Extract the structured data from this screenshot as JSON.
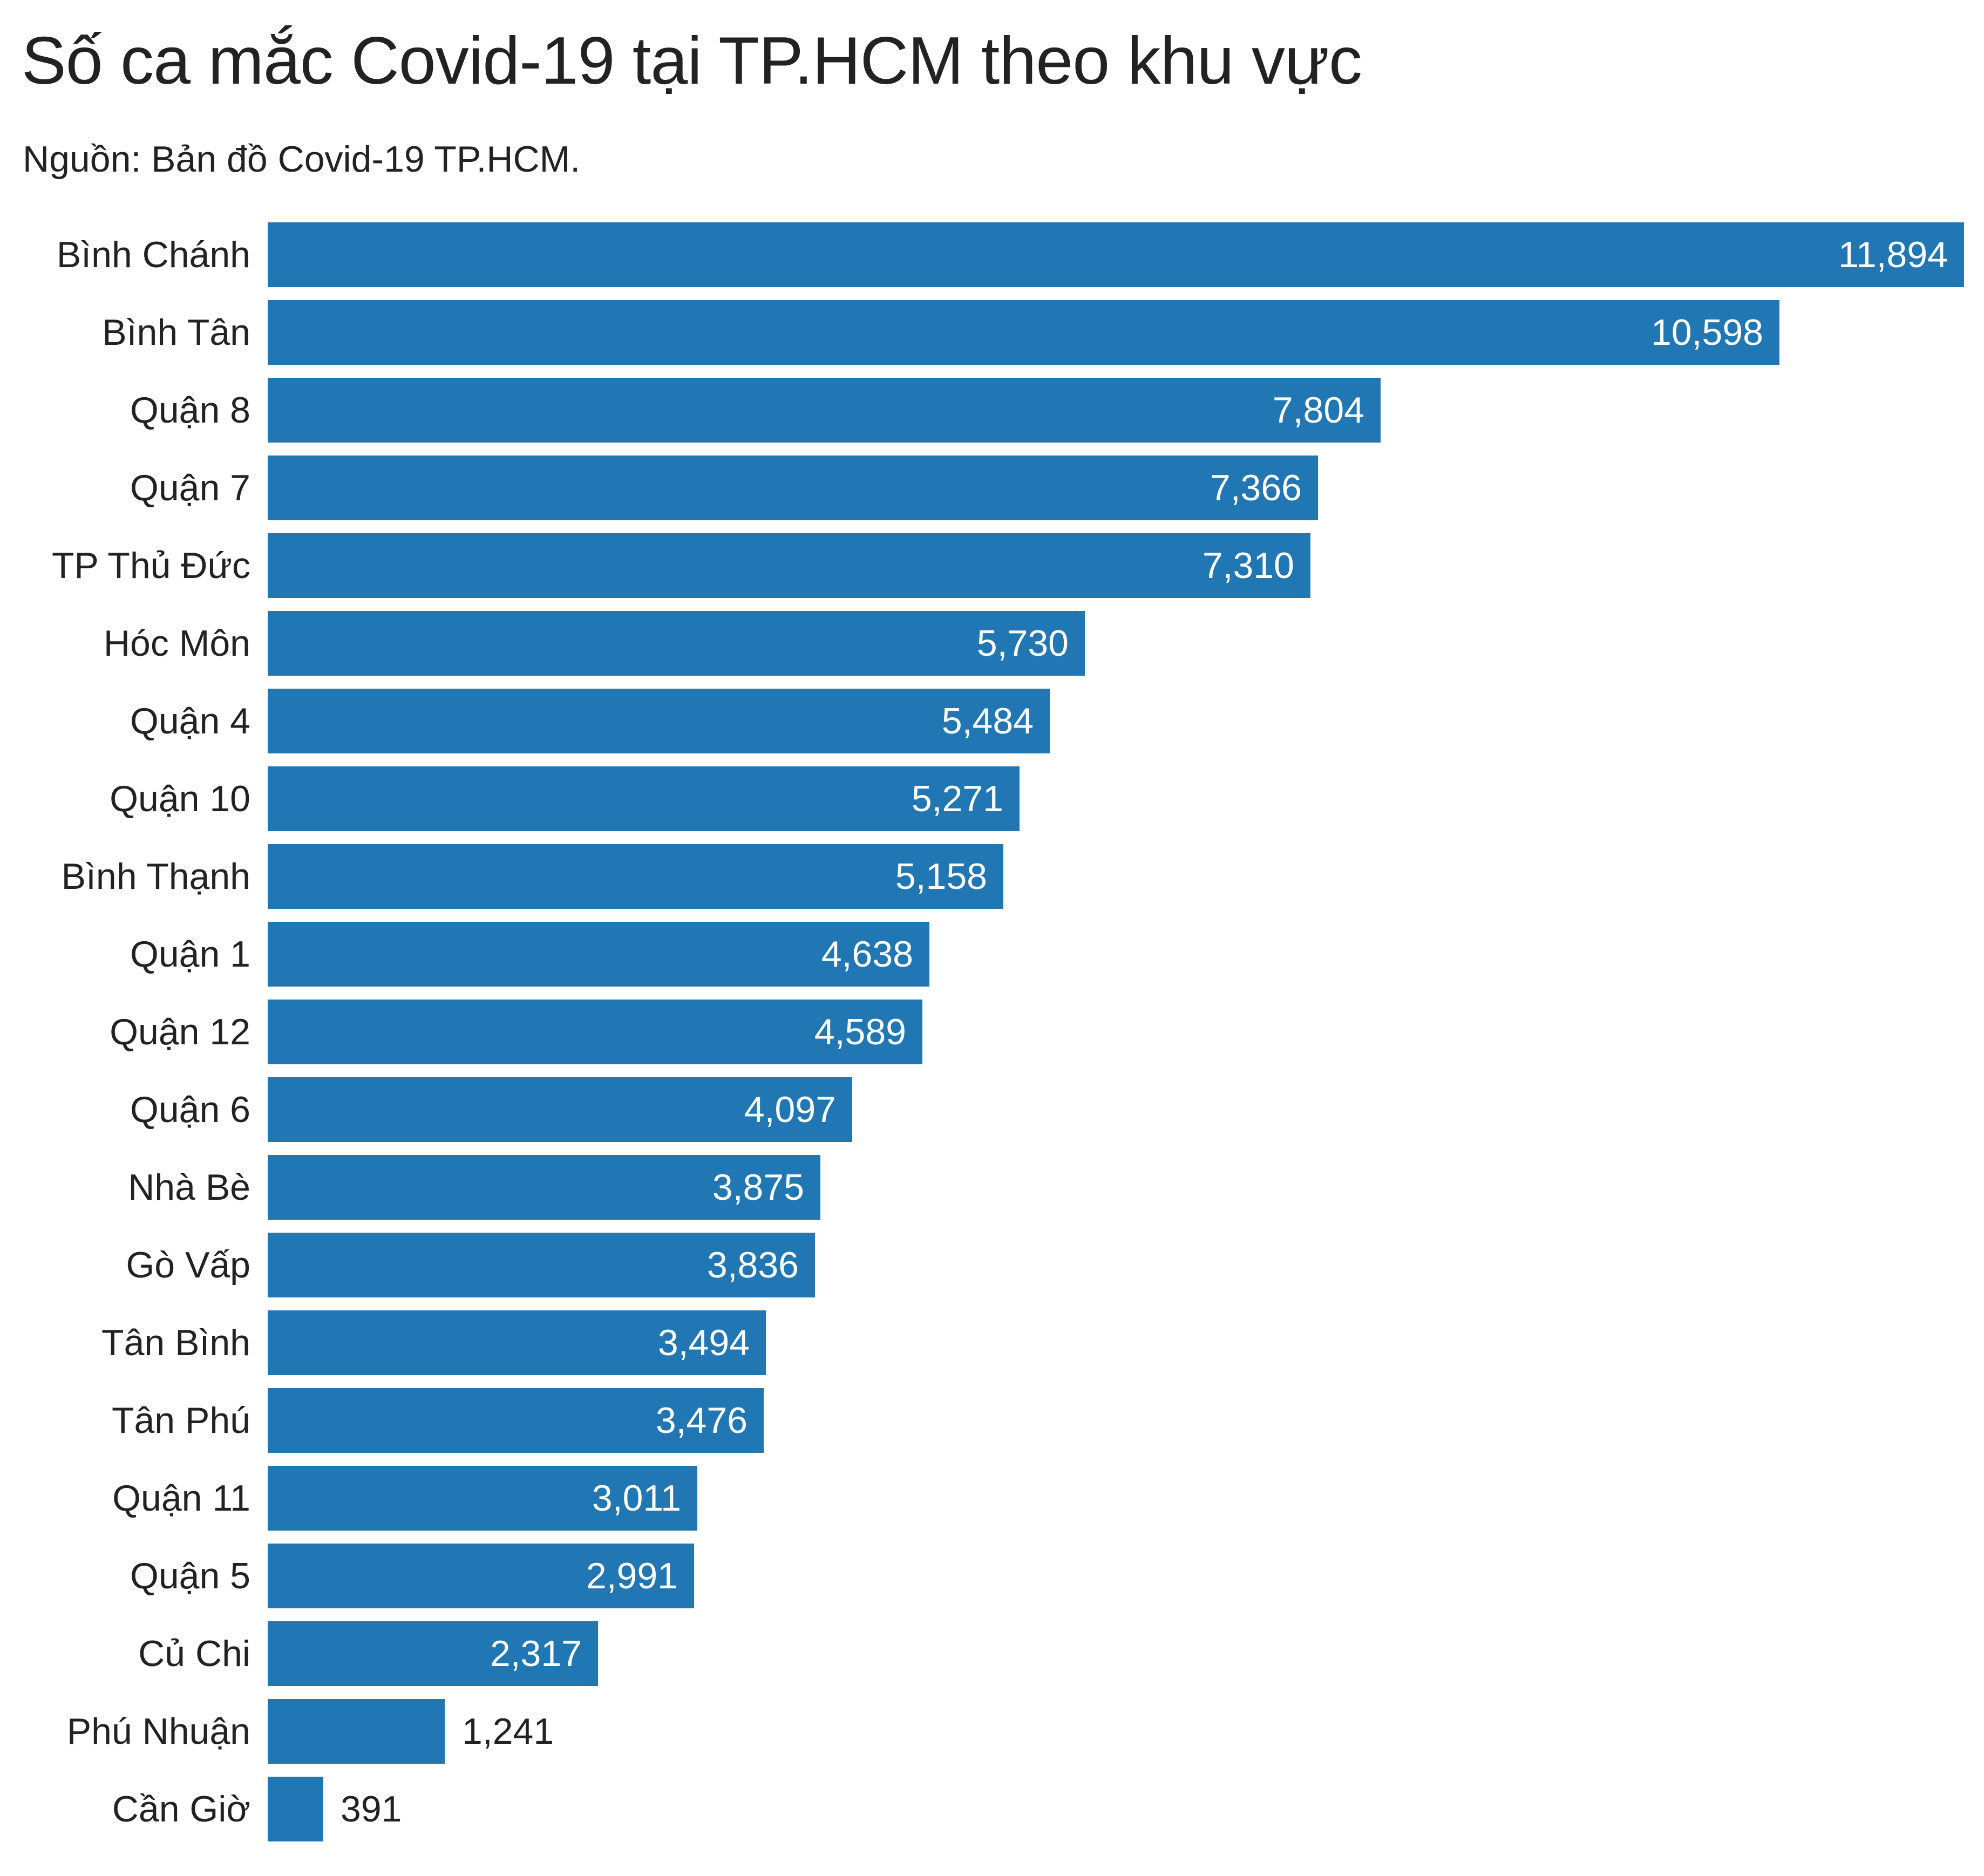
{
  "title": "Số ca mắc Covid-19 tại TP.HCM theo khu vực",
  "subtitle": "Nguồn: Bản đồ Covid-19 TP.HCM.",
  "bar_color": "#2176b4",
  "chart_data": {
    "type": "bar",
    "orientation": "horizontal",
    "title": "Số ca mắc Covid-19 tại TP.HCM theo khu vực",
    "subtitle": "Nguồn: Bản đồ Covid-19 TP.HCM.",
    "xlabel": "",
    "ylabel": "",
    "grid": false,
    "legend": null,
    "xlim": [
      0,
      11894
    ],
    "categories": [
      "Bình Chánh",
      "Bình Tân",
      "Quận 8",
      "Quận 7",
      "TP Thủ Đức",
      "Hóc Môn",
      "Quận 4",
      "Quận 10",
      "Bình Thạnh",
      "Quận 1",
      "Quận 12",
      "Quận 6",
      "Nhà Bè",
      "Gò Vấp",
      "Tân Bình",
      "Tân Phú",
      "Quận 11",
      "Quận 5",
      "Củ Chi",
      "Phú Nhuận",
      "Cần Giờ"
    ],
    "values": [
      11894,
      10598,
      7804,
      7366,
      7310,
      5730,
      5484,
      5271,
      5158,
      4638,
      4589,
      4097,
      3875,
      3836,
      3494,
      3476,
      3011,
      2991,
      2317,
      1241,
      391
    ],
    "value_labels": [
      "11,894",
      "10,598",
      "7,804",
      "7,366",
      "7,310",
      "5,730",
      "5,484",
      "5,271",
      "5,158",
      "4,638",
      "4,589",
      "4,097",
      "3,875",
      "3,836",
      "3,494",
      "3,476",
      "3,011",
      "2,991",
      "2,317",
      "1,241",
      "391"
    ]
  }
}
